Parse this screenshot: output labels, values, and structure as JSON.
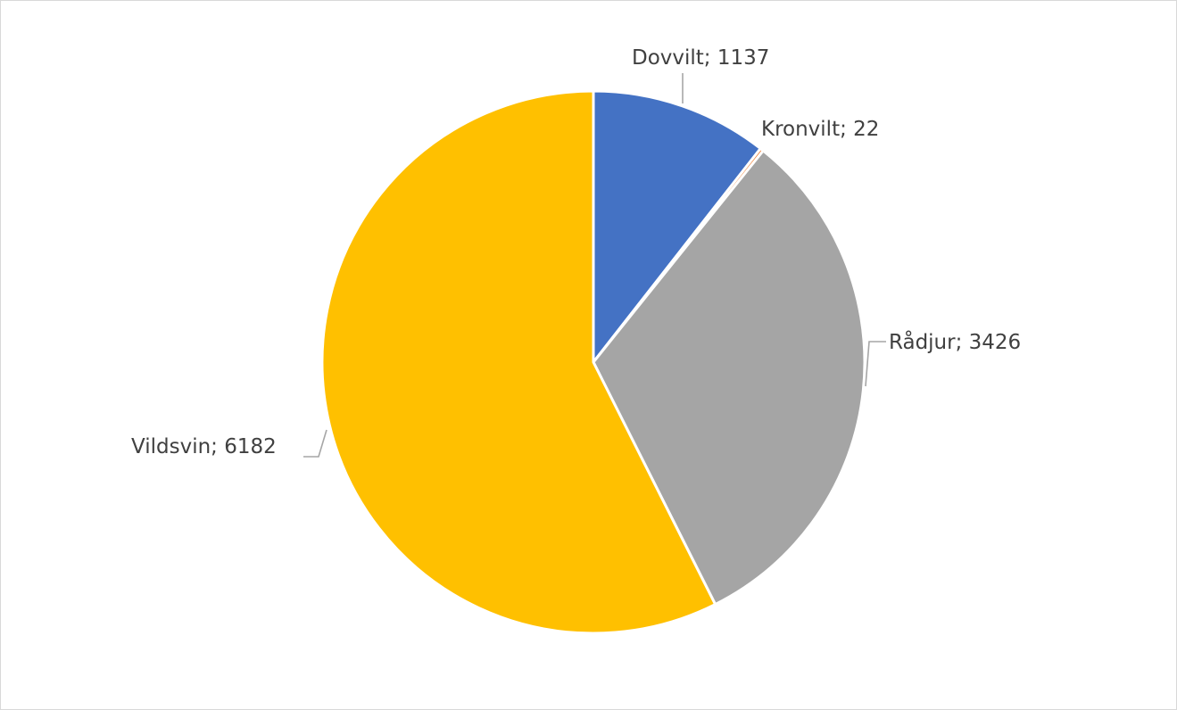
{
  "chart_data": {
    "type": "pie",
    "categories": [
      "Dovvilt",
      "Kronvilt",
      "Rådjur",
      "Vildsvin"
    ],
    "values": [
      1137,
      22,
      3426,
      6182
    ],
    "colors": [
      "#4472c4",
      "#ed7d31",
      "#a5a5a5",
      "#ffc000"
    ],
    "labels": [
      {
        "category": "Dovvilt",
        "value": "1137",
        "text": "Dovvilt; 1137"
      },
      {
        "category": "Kronvilt",
        "value": "22",
        "text": "Kronvilt; 22"
      },
      {
        "category": "Rådjur",
        "value": "3426",
        "text": "Rådjur; 3426"
      },
      {
        "category": "Vildsvin",
        "value": "6182",
        "text": "Vildsvin; 6182"
      }
    ],
    "start_angle": "top, clockwise",
    "legend": "none",
    "slice_border_color": "#ffffff"
  }
}
